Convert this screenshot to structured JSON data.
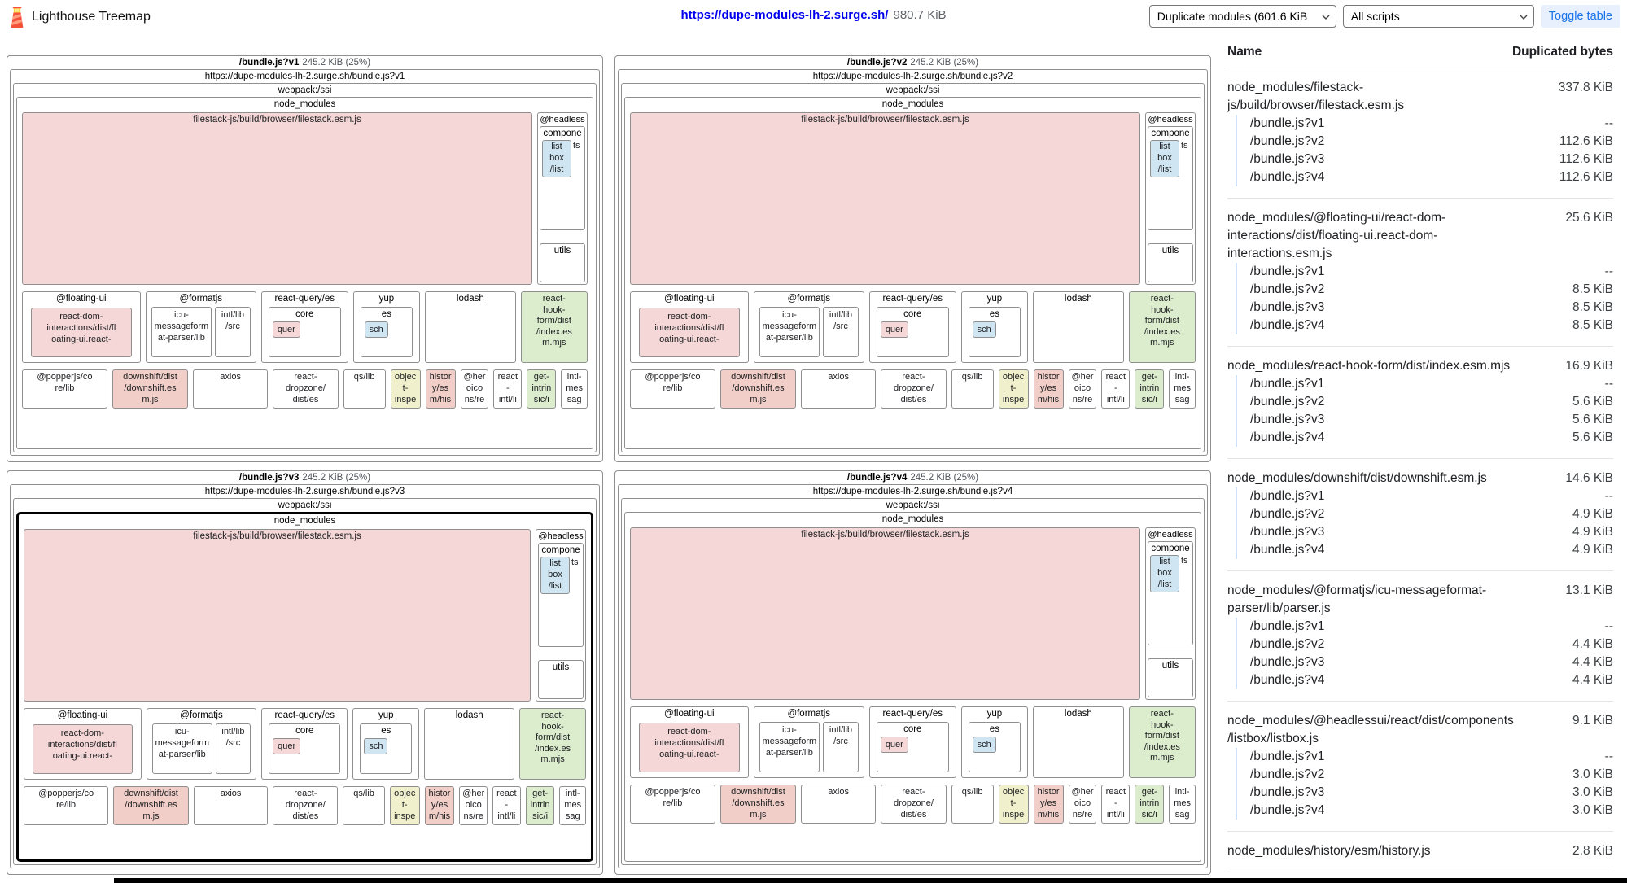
{
  "header": {
    "app_title": "Lighthouse Treemap",
    "site_url": "https://dupe-modules-lh-2.surge.sh/",
    "total_size": "980.7 KiB",
    "view_mode_select": "Duplicate modules (601.6 KiB",
    "script_select": "All scripts",
    "toggle_table_label": "Toggle table"
  },
  "palette": {
    "pink": "#f4d7d6",
    "salmon": "#f1cfc8",
    "green": "#dcedcd",
    "blue": "#cfe6f2",
    "yellow": "#f0f0cd",
    "white": "#ffffff"
  },
  "treemap": {
    "bundles": [
      {
        "name": "/bundle.js?v1",
        "size": "245.2 KiB (25%)",
        "url": "https://dupe-modules-lh-2.surge.sh/bundle.js?v1",
        "highlighted": false
      },
      {
        "name": "/bundle.js?v2",
        "size": "245.2 KiB (25%)",
        "url": "https://dupe-modules-lh-2.surge.sh/bundle.js?v2",
        "highlighted": false
      },
      {
        "name": "/bundle.js?v3",
        "size": "245.2 KiB (25%)",
        "url": "https://dupe-modules-lh-2.surge.sh/bundle.js?v3",
        "highlighted": true
      },
      {
        "name": "/bundle.js?v4",
        "size": "245.2 KiB (25%)",
        "url": "https://dupe-modules-lh-2.surge.sh/bundle.js?v4",
        "highlighted": false
      }
    ],
    "shared": {
      "webpack_label": "webpack:/ssi",
      "node_modules_label": "node_modules",
      "filestack_label": "filestack-js/build/browser/filestack.esm.js",
      "headless": {
        "title": "@headless",
        "components_line1": "compone",
        "components_line2": "ts",
        "listbox": "list\nbox\n/list",
        "utils": "utils"
      },
      "floating_ui": {
        "title": "@floating-ui",
        "inner": "react-dom-\ninteractions/dist/fl\noating-ui.react-"
      },
      "formatjs": {
        "title": "@formatjs",
        "icu": "icu-\nmessageform\nat-parser/lib",
        "intl": "intl/lib\n/src"
      },
      "react_query": {
        "title": "react-query/es",
        "core_title": "core",
        "chip": "quer"
      },
      "yup": {
        "title": "yup",
        "es_title": "es",
        "chip": "sch"
      },
      "lodash_title": "lodash",
      "react_hook_form": "react-\nhook-\nform/dist\n/index.es\nm.mjs",
      "row3": [
        {
          "label": "@popperjs/co\nre/lib",
          "color": "white"
        },
        {
          "label": "downshift/dist\n/downshift.es\nm.js",
          "color": "salmon"
        },
        {
          "label": "axios",
          "color": "white"
        },
        {
          "label": "react-\ndropzone/\ndist/es",
          "color": "white"
        },
        {
          "label": "qs/lib",
          "color": "white"
        },
        {
          "label": "objec\nt-\ninspe",
          "color": "yellow"
        },
        {
          "label": "histor\ny/es\nm/his",
          "color": "salmon"
        },
        {
          "label": "@her\noico\nns/re",
          "color": "white"
        },
        {
          "label": "react\n-\nintl/li",
          "color": "white"
        },
        {
          "label": "get-\nintrin\nsic/i",
          "color": "green"
        },
        {
          "label": "intl-\nmes\nsag",
          "color": "white"
        }
      ]
    }
  },
  "table": {
    "name_header": "Name",
    "bytes_header": "Duplicated bytes",
    "groups": [
      {
        "name": "node_modules/filestack-js/build/browser/filestack.esm.js",
        "value": "337.8 KiB",
        "rows": [
          {
            "name": "/bundle.js?v1",
            "value": "--"
          },
          {
            "name": "/bundle.js?v2",
            "value": "112.6 KiB"
          },
          {
            "name": "/bundle.js?v3",
            "value": "112.6 KiB"
          },
          {
            "name": "/bundle.js?v4",
            "value": "112.6 KiB"
          }
        ]
      },
      {
        "name": "node_modules/@floating-ui/react-dom-interactions/dist/floating-ui.react-dom-interactions.esm.js",
        "value": "25.6 KiB",
        "rows": [
          {
            "name": "/bundle.js?v1",
            "value": "--"
          },
          {
            "name": "/bundle.js?v2",
            "value": "8.5 KiB"
          },
          {
            "name": "/bundle.js?v3",
            "value": "8.5 KiB"
          },
          {
            "name": "/bundle.js?v4",
            "value": "8.5 KiB"
          }
        ]
      },
      {
        "name": "node_modules/react-hook-form/dist/index.esm.mjs",
        "value": "16.9 KiB",
        "rows": [
          {
            "name": "/bundle.js?v1",
            "value": "--"
          },
          {
            "name": "/bundle.js?v2",
            "value": "5.6 KiB"
          },
          {
            "name": "/bundle.js?v3",
            "value": "5.6 KiB"
          },
          {
            "name": "/bundle.js?v4",
            "value": "5.6 KiB"
          }
        ]
      },
      {
        "name": "node_modules/downshift/dist/downshift.esm.js",
        "value": "14.6 KiB",
        "rows": [
          {
            "name": "/bundle.js?v1",
            "value": "--"
          },
          {
            "name": "/bundle.js?v2",
            "value": "4.9 KiB"
          },
          {
            "name": "/bundle.js?v3",
            "value": "4.9 KiB"
          },
          {
            "name": "/bundle.js?v4",
            "value": "4.9 KiB"
          }
        ]
      },
      {
        "name": "node_modules/@formatjs/icu-messageformat-parser/lib/parser.js",
        "value": "13.1 KiB",
        "rows": [
          {
            "name": "/bundle.js?v1",
            "value": "--"
          },
          {
            "name": "/bundle.js?v2",
            "value": "4.4 KiB"
          },
          {
            "name": "/bundle.js?v3",
            "value": "4.4 KiB"
          },
          {
            "name": "/bundle.js?v4",
            "value": "4.4 KiB"
          }
        ]
      },
      {
        "name": "node_modules/@headlessui/react/dist/components/listbox/listbox.js",
        "value": "9.1 KiB",
        "rows": [
          {
            "name": "/bundle.js?v1",
            "value": "--"
          },
          {
            "name": "/bundle.js?v2",
            "value": "3.0 KiB"
          },
          {
            "name": "/bundle.js?v3",
            "value": "3.0 KiB"
          },
          {
            "name": "/bundle.js?v4",
            "value": "3.0 KiB"
          }
        ]
      },
      {
        "name": "node_modules/history/esm/history.js",
        "value": "2.8 KiB",
        "rows": []
      }
    ]
  }
}
